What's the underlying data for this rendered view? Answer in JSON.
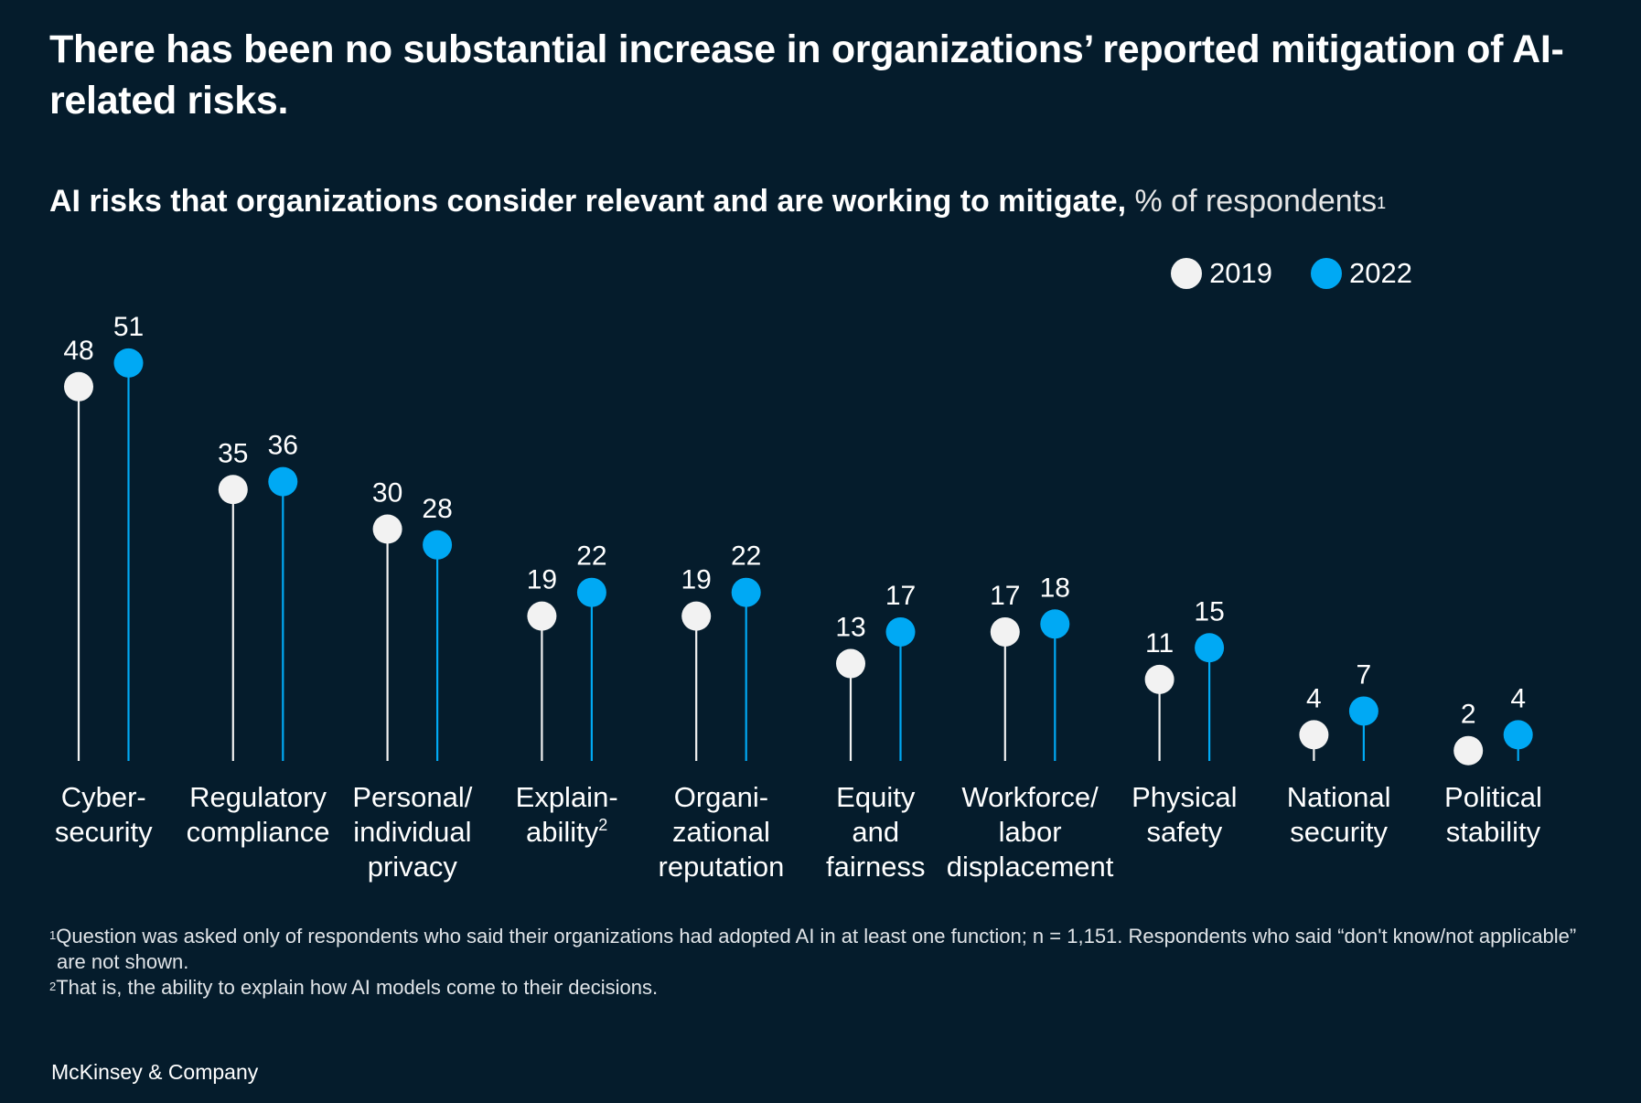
{
  "header": {
    "title": "There has been no substantial increase in organizations’ reported mitigation of AI-related risks.",
    "subtitle_bold": "AI risks that organizations consider relevant and are working to mitigate,",
    "subtitle_unit": " % of respondents",
    "subtitle_sup": "1"
  },
  "legend": {
    "items": [
      {
        "label": "2019",
        "color": "#f2f2f2"
      },
      {
        "label": "2022",
        "color": "#00a9f4"
      }
    ]
  },
  "chart_data": {
    "type": "lollipop",
    "title": "AI risks that organizations consider relevant and are working to mitigate",
    "ylabel": "% of respondents",
    "ylim": [
      0,
      51
    ],
    "grid": false,
    "legend_position": "top-right",
    "categories": [
      [
        "Cyber-",
        "security"
      ],
      [
        "Regulatory",
        "compliance"
      ],
      [
        "Personal/",
        "individual",
        "privacy"
      ],
      [
        "Explain-",
        "ability"
      ],
      [
        "Organi-",
        "zational",
        "reputation"
      ],
      [
        "Equity",
        "and",
        "fairness"
      ],
      [
        "Workforce/",
        "labor",
        "displacement"
      ],
      [
        "Physical",
        "safety"
      ],
      [
        "National",
        "security"
      ],
      [
        "Political",
        "stability"
      ]
    ],
    "category_superscripts": [
      "",
      "",
      "",
      "2",
      "",
      "",
      "",
      "",
      "",
      ""
    ],
    "series": [
      {
        "name": "2019",
        "color": "#f2f2f2",
        "values": [
          48,
          35,
          30,
          19,
          19,
          13,
          17,
          11,
          4,
          2
        ]
      },
      {
        "name": "2022",
        "color": "#00a9f4",
        "values": [
          51,
          36,
          28,
          22,
          22,
          17,
          18,
          15,
          7,
          4
        ]
      }
    ]
  },
  "footnotes": {
    "note1_marker": "1",
    "note1_text": "Question was asked only of respondents who said their organizations had adopted AI in at least one function; n = 1,151. Respondents who said “don't know/not applicable” are not shown.",
    "note2_marker": "2",
    "note2_text": "That is, the ability to explain how AI models come to their decisions."
  },
  "brand": {
    "name": "McKinsey & Company"
  }
}
